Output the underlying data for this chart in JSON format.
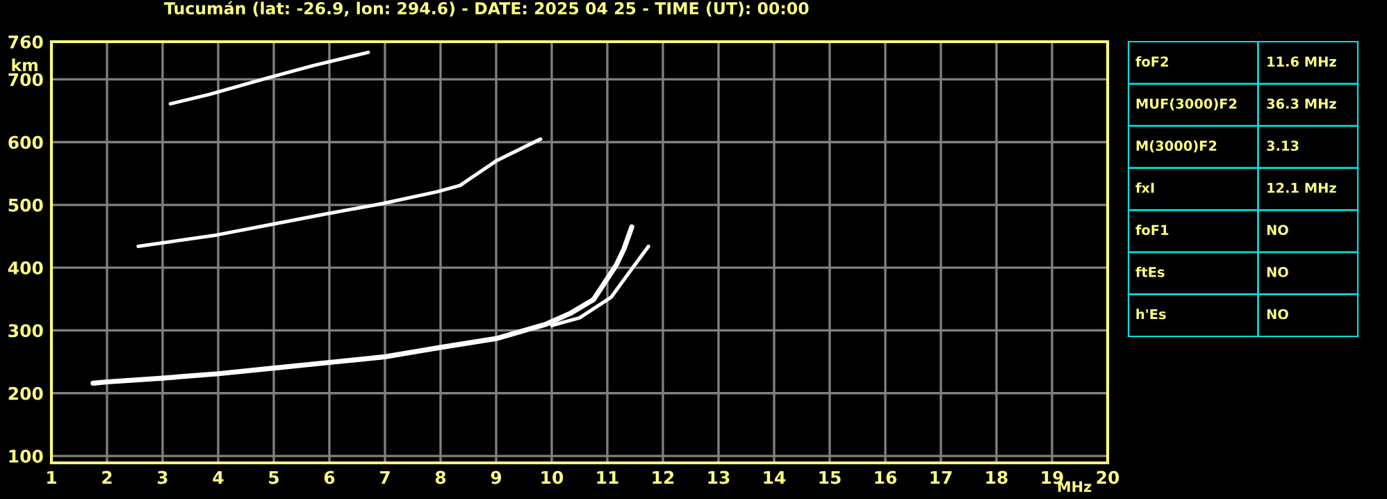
{
  "chart_data": [
    {
      "type": "line",
      "title": "Tucumán (lat: -26.9, lon: 294.6) - DATE: 2025 04 25 - TIME (UT): 00:00",
      "xlabel": "MHz",
      "ylabel": "km",
      "xlim": [
        1,
        20
      ],
      "ylim": [
        89,
        760
      ],
      "xticks": [
        1,
        2,
        3,
        4,
        5,
        6,
        7,
        8,
        9,
        10,
        11,
        12,
        13,
        14,
        15,
        16,
        17,
        18,
        19,
        20
      ],
      "yticks": [
        100,
        200,
        300,
        400,
        500,
        600,
        700,
        760
      ],
      "grid": true,
      "legend": false,
      "marker": "none",
      "line_style": "solid",
      "series": [
        {
          "color": "#ffffff",
          "x": [
            1.75,
            2,
            3,
            4,
            5,
            6,
            7,
            8,
            9,
            9.9,
            10.33,
            10.75,
            11.16,
            11.3,
            11.44
          ],
          "values": [
            216,
            218,
            224,
            231,
            240,
            249,
            258,
            273,
            287,
            310,
            327,
            349,
            404,
            430,
            465
          ]
        },
        {
          "color": "#ffffff",
          "x": [
            10.0,
            10.5,
            11.07,
            11.49,
            11.74
          ],
          "values": [
            308,
            320,
            353,
            404,
            434
          ]
        },
        {
          "color": "#ffffff",
          "x": [
            2.56,
            3.97,
            4.97,
            5.96,
            6.95,
            7.94,
            8.35,
            9.0,
            9.8
          ],
          "values": [
            434,
            452,
            469,
            486,
            502,
            521,
            531,
            570,
            605
          ]
        },
        {
          "color": "#ffffff",
          "x": [
            3.14,
            3.84,
            4.88,
            5.71,
            6.7
          ],
          "values": [
            661,
            676,
            702,
            722,
            743
          ]
        }
      ]
    },
    {
      "type": "other",
      "annotations": [
        "foF2",
        "11.6 MHz",
        "MUF(3000)F2",
        "36.3 MHz",
        "M(3000)F2",
        "3.13",
        "fxI",
        "12.1 MHz",
        "foF1",
        "NO",
        "ftEs",
        "NO",
        "h'Es",
        "NO"
      ]
    }
  ]
}
